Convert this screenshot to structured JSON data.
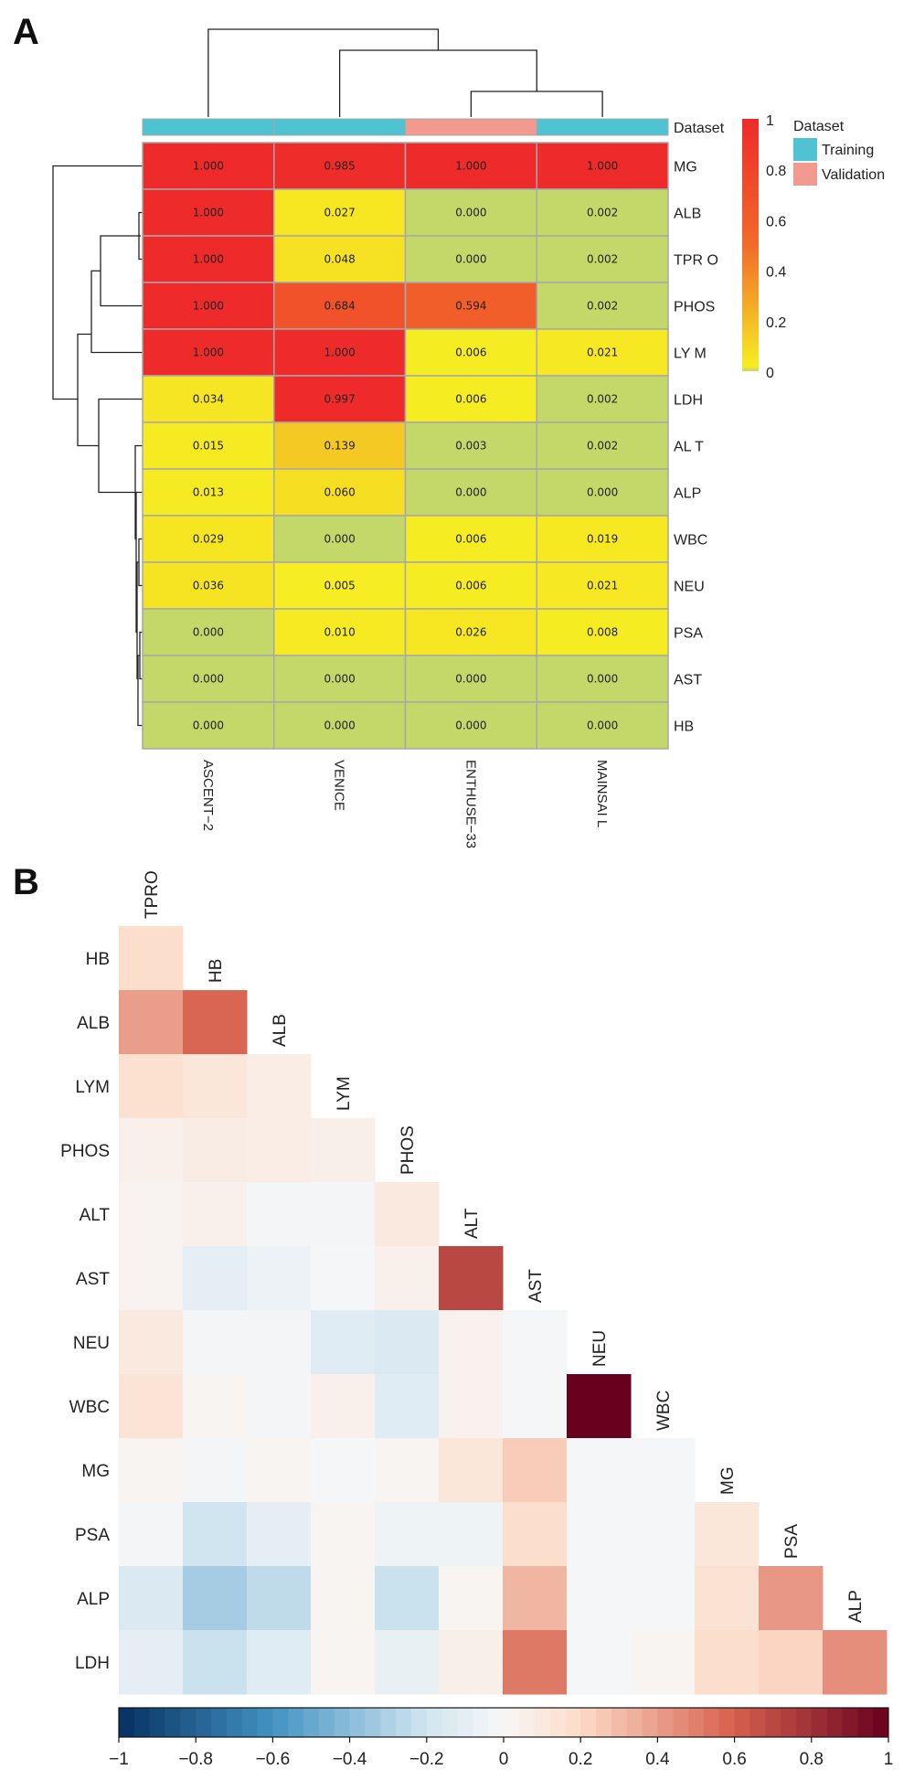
{
  "panel_a_label": "A",
  "panel_b_label": "B",
  "chart_data": [
    {
      "type": "heatmap",
      "panel": "A",
      "rows": [
        "MG",
        "ALB",
        "TPR O",
        "PHOS",
        "LY M",
        "LDH",
        "AL T",
        "ALP",
        "WBC",
        "NEU",
        "PSA",
        "AST",
        "HB"
      ],
      "columns": [
        "ASCENT−2",
        "VENICE",
        "ENTHUSE−33",
        "MAINSAI  L"
      ],
      "cell_labels": [
        [
          "1.000",
          "0.985",
          "1.000",
          "1.000"
        ],
        [
          "1.000",
          "0.027",
          "0.000",
          "0.002"
        ],
        [
          "1.000",
          "0.048",
          "0.000",
          "0.002"
        ],
        [
          "1.000",
          "0.684",
          "0.594",
          "0.002"
        ],
        [
          "1.000",
          "1.000",
          "0.006",
          "0.021"
        ],
        [
          "0.034",
          "0.997",
          "0.006",
          "0.002"
        ],
        [
          "0.015",
          "0.139",
          "0.003",
          "0.002"
        ],
        [
          "0.013",
          "0.060",
          "0.000",
          "0.000"
        ],
        [
          "0.029",
          "0.000",
          "0.006",
          "0.019"
        ],
        [
          "0.036",
          "0.005",
          "0.006",
          "0.021"
        ],
        [
          "0.000",
          "0.010",
          "0.026",
          "0.008"
        ],
        [
          "0.000",
          "0.000",
          "0.000",
          "0.000"
        ],
        [
          "0.000",
          "0.000",
          "0.000",
          "0.000"
        ]
      ],
      "annotation": {
        "name": "Dataset",
        "values": [
          "Training",
          "Training",
          "Validation",
          "Training"
        ],
        "legend_title": "Dataset",
        "legend_items": [
          {
            "label": "Training",
            "color": "#4fc3d2"
          },
          {
            "label": "Validation",
            "color": "#f29a8f"
          }
        ]
      },
      "color_scale": {
        "min": 0,
        "max": 1,
        "ticks": [
          "1",
          "0.8",
          "0.6",
          "0.4",
          "0.2",
          "0"
        ],
        "zero_color": "#c4d86a",
        "low_color": "#f6ee22",
        "mid_color": "#f26a2a",
        "high_color": "#ee2a2a"
      }
    },
    {
      "type": "heatmap",
      "panel": "B",
      "shape": "lower-triangle correlation matrix",
      "row_labels": [
        "HB",
        "ALB",
        "LYM",
        "PHOS",
        "ALT",
        "AST",
        "NEU",
        "WBC",
        "MG",
        "PSA",
        "ALP",
        "LDH"
      ],
      "diagonal_labels": [
        "TPRO",
        "HB",
        "ALB",
        "LYM",
        "PHOS",
        "ALT",
        "AST",
        "NEU",
        "WBC",
        "MG",
        "PSA",
        "ALP"
      ],
      "values": [
        [
          0.18
        ],
        [
          0.4,
          0.58
        ],
        [
          0.16,
          0.12,
          0.07
        ],
        [
          0.05,
          0.08,
          0.07,
          0.06
        ],
        [
          0.03,
          0.05,
          -0.02,
          -0.02,
          0.1
        ],
        [
          0.03,
          -0.1,
          -0.06,
          -0.01,
          0.05,
          0.7
        ],
        [
          0.1,
          -0.02,
          -0.02,
          -0.12,
          -0.15,
          0.04,
          -0.01
        ],
        [
          0.14,
          0.02,
          -0.02,
          0.05,
          -0.12,
          0.04,
          -0.01,
          1.0
        ],
        [
          0.02,
          -0.02,
          0.02,
          -0.01,
          0.02,
          0.12,
          0.25,
          -0.01,
          -0.01
        ],
        [
          -0.02,
          -0.2,
          -0.1,
          0.02,
          -0.05,
          -0.05,
          0.18,
          -0.01,
          -0.01,
          0.12
        ],
        [
          -0.15,
          -0.32,
          -0.25,
          0.02,
          -0.22,
          0.02,
          0.32,
          -0.01,
          -0.01,
          0.15,
          0.42
        ],
        [
          -0.1,
          -0.22,
          -0.12,
          0.02,
          -0.08,
          0.06,
          0.52,
          -0.01,
          0.02,
          0.18,
          0.22,
          0.45
        ]
      ],
      "color_scale": {
        "min": -1,
        "max": 1,
        "ticks": [
          "−1",
          "−0.8",
          "−0.6",
          "−0.4",
          "−0.2",
          "0",
          "0.2",
          "0.4",
          "0.6",
          "0.8",
          "1"
        ]
      }
    }
  ]
}
